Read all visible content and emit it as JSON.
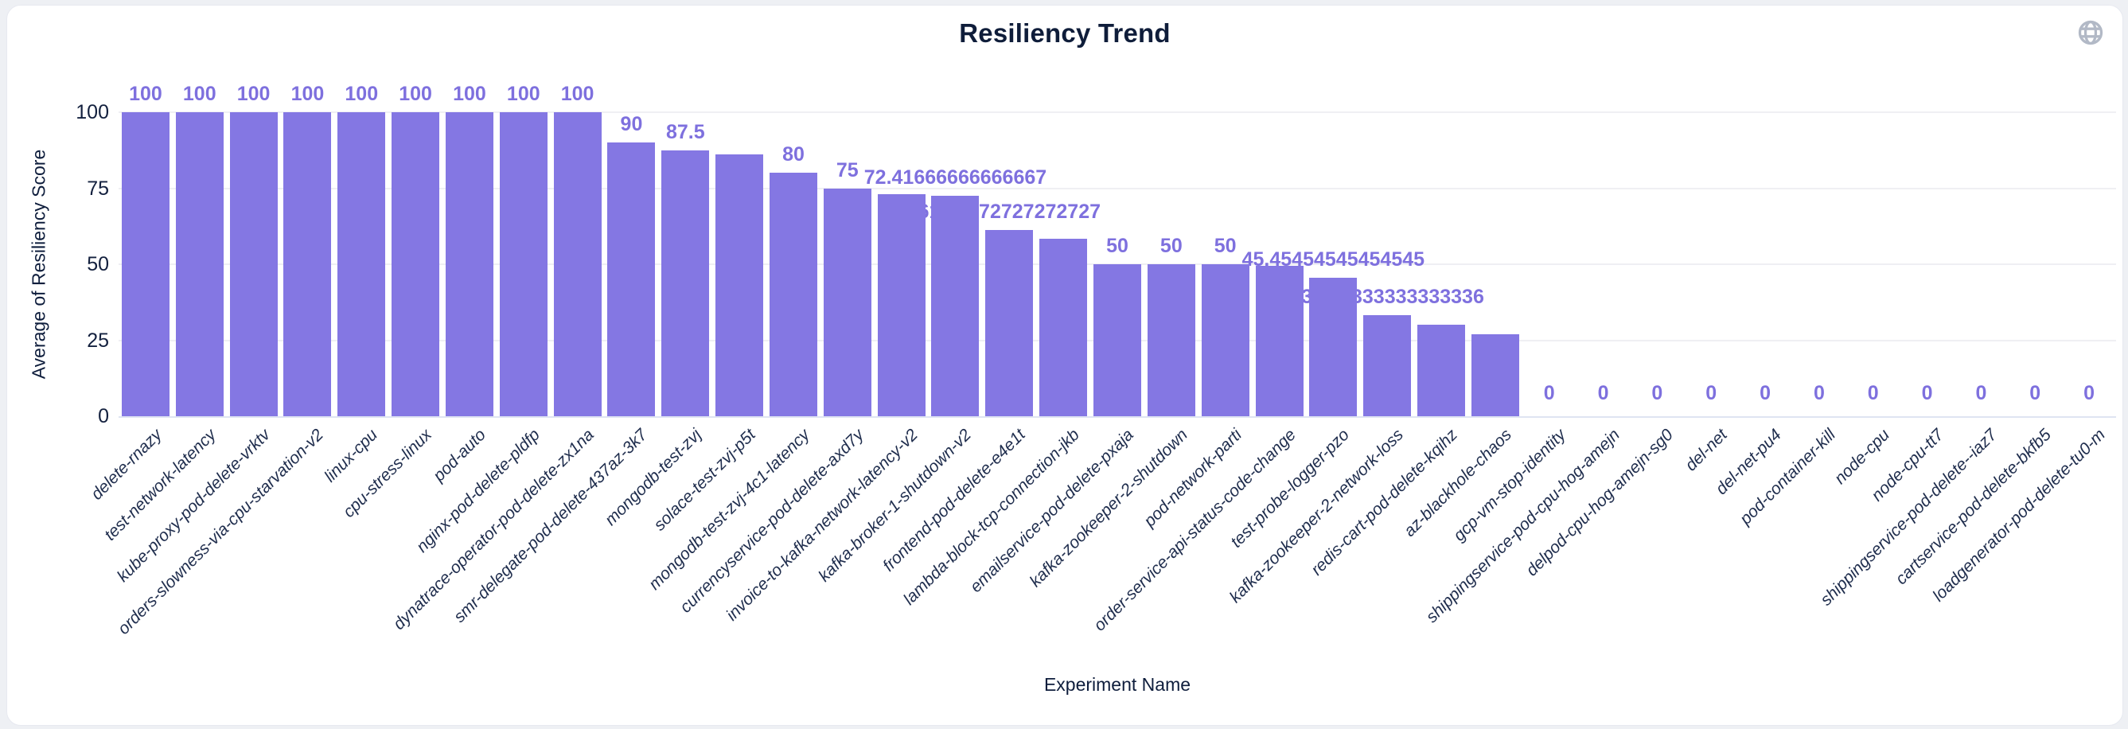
{
  "page": {
    "background_color": "#eef0f4",
    "card_background_color": "#ffffff"
  },
  "header": {
    "title": "Resiliency Trend",
    "globe_icon": "globe-icon",
    "globe_icon_color": "#b2b9c6"
  },
  "chart_data": {
    "type": "bar",
    "title": "Resiliency Trend",
    "xlabel": "Experiment Name",
    "ylabel": "Average of Resiliency Score",
    "ylim": [
      0,
      100
    ],
    "yticks": [
      0,
      25,
      50,
      75,
      100
    ],
    "grid": true,
    "legend_position": "none",
    "bar_color": "#8477e3",
    "value_label_color": "#7e70de",
    "categories": [
      "delete-rnazy",
      "test-network-latency",
      "kube-proxy-pod-delete-vrktv",
      "orders-slowness-via-cpu-starvation-v2",
      "linux-cpu",
      "cpu-stress-linux",
      "pod-auto",
      "nginx-pod-delete-pldfp",
      "dynatrace-operator-pod-delete-zx1na",
      "smr-delegate-pod-delete-437az-3k7",
      "mongodb-test-zvj",
      "solace-test-zvj-p5t",
      "mongodb-test-zvj-4c1-latency",
      "currencyservice-pod-delete-axd7y",
      "invoice-to-kafka-network-latency-v2",
      "kafka-broker-1-shutdown-v2",
      "frontend-pod-delete-e4e1t",
      "lambda-block-tcp-connection-jkb",
      "emailservice-pod-delete-pxaja",
      "kafka-zookeeper-2-shutdown",
      "pod-network-parti",
      "order-service-api-status-code-change",
      "test-probe-logger-pzo",
      "kafka-zookeeper-2-network-loss",
      "redis-cart-pod-delete-kqihz",
      "az-blackhole-chaos",
      "gcp-vm-stop-identity",
      "shippingservice-pod-cpu-hog-amejn",
      "delpod-cpu-hog-amejn-sg0",
      "del-net",
      "del-net-pu4",
      "pod-container-kill",
      "node-cpu",
      "node-cpu-tt7",
      "shippingservice-pod-delete--iaz7",
      "cartservice-pod-delete-bkfb5",
      "loadgenerator-pod-delete-tu0-m"
    ],
    "values": [
      100,
      100,
      100,
      100,
      100,
      100,
      100,
      100,
      100,
      90,
      87.5,
      86,
      80,
      75,
      73,
      72.41666666666667,
      61.27272727272727,
      58.3,
      50,
      50,
      50,
      49.5,
      45.45454545454545,
      33.333333333333336,
      30,
      27,
      0,
      0,
      0,
      0,
      0,
      0,
      0,
      0,
      0,
      0,
      0
    ],
    "bar_value_labels": [
      "100",
      "100",
      "100",
      "100",
      "100",
      "100",
      "100",
      "100",
      "100",
      "90",
      "87.5",
      "",
      "80",
      "75",
      "",
      "72.41666666666667",
      "61.27272727272727",
      "",
      "50",
      "50",
      "50",
      "",
      "45.45454545454545",
      "33.333333333333336",
      "",
      "",
      "0",
      "0",
      "0",
      "0",
      "0",
      "0",
      "0",
      "0",
      "0",
      "0",
      "0"
    ]
  }
}
